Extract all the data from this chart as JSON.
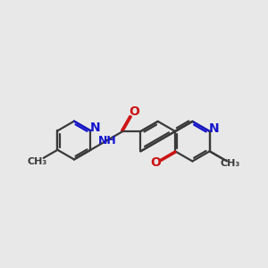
{
  "bg_color": "#e8e8e8",
  "bond_color": "#3a3a3a",
  "nitrogen_color": "#1414cc",
  "oxygen_color": "#cc1414",
  "line_width": 1.6,
  "fig_size": [
    3.0,
    3.0
  ],
  "dpi": 100,
  "xlim": [
    0,
    10
  ],
  "ylim": [
    0,
    10
  ]
}
